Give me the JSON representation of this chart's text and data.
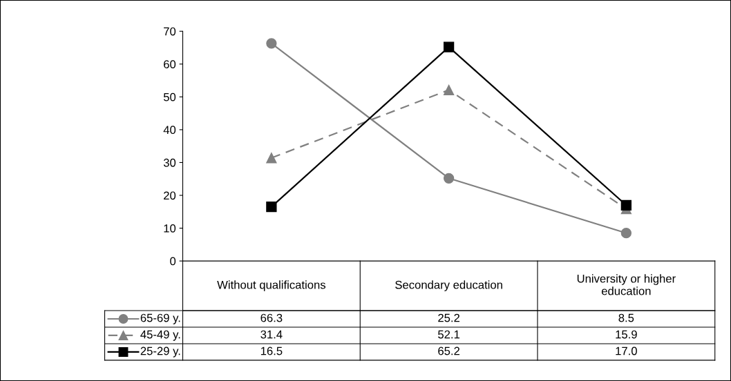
{
  "chart_data": {
    "type": "line",
    "categories": [
      "Without qualifications",
      "Secondary education",
      "University or higher education"
    ],
    "series": [
      {
        "name": "65-69 y.",
        "color": "#808080",
        "marker": "circle",
        "line_style": "solid",
        "values": [
          66.3,
          25.2,
          8.5
        ],
        "value_labels": [
          "66.3",
          "25.2",
          "8.5"
        ]
      },
      {
        "name": "45-49 y.",
        "color": "#808080",
        "marker": "triangle",
        "line_style": "dashed",
        "values": [
          31.4,
          52.1,
          15.9
        ],
        "value_labels": [
          "31.4",
          "52.1",
          "15.9"
        ]
      },
      {
        "name": "25-29 y.",
        "color": "#000000",
        "marker": "square",
        "line_style": "solid",
        "values": [
          16.5,
          65.2,
          17.0
        ],
        "value_labels": [
          "16.5",
          "65.2",
          "17.0"
        ]
      }
    ],
    "ylim": [
      0,
      70
    ],
    "yticks": [
      0,
      10,
      20,
      30,
      40,
      50,
      60,
      70
    ],
    "grid": false,
    "legend": "bottom left",
    "tick_labels": "y"
  }
}
